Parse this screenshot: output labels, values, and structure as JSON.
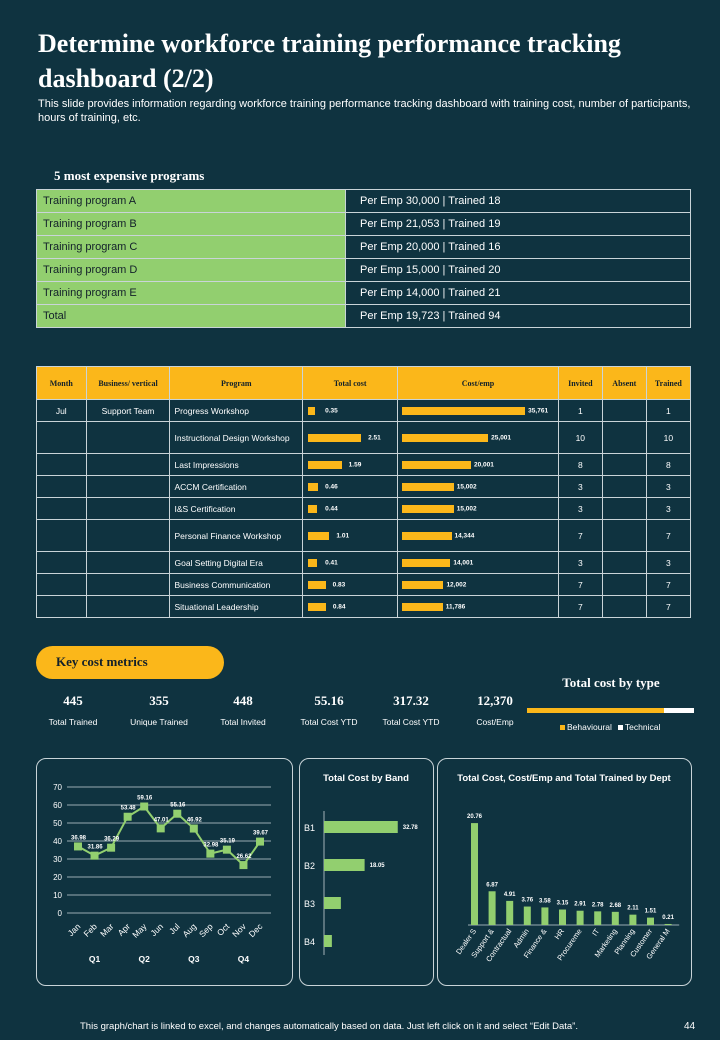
{
  "title": "Determine workforce  training performance tracking dashboard  (2/2)",
  "subtitle": "This slide provides information regarding workforce training performance tracking dashboard with training cost, number of participants, hours of training, etc.",
  "expensive_heading": "5 most expensive programs",
  "expensive_programs": [
    {
      "name": "Training  program A",
      "value": "Per Emp  30,000 | Trained 18"
    },
    {
      "name": "Training  program B",
      "value": "Per Emp  21,053 | Trained 19"
    },
    {
      "name": "Training  program C",
      "value": "Per Emp  20,000 | Trained 16"
    },
    {
      "name": "Training  program D",
      "value": "Per Emp  15,000 | Trained 20"
    },
    {
      "name": "Training  program E",
      "value": "Per Emp  14,000 | Trained 21"
    },
    {
      "name": "Total",
      "value": "Per Emp  19,723 | Trained 94"
    }
  ],
  "detail_table": {
    "headers": [
      "Month",
      "Business/ vertical",
      "Program",
      "Total cost",
      "Cost/emp",
      "Invited",
      "Absent",
      "Trained"
    ],
    "month": "Jul",
    "vertical": "Support Team",
    "total_cost_max": 2.51,
    "cost_emp_max": 35761,
    "rows": [
      {
        "program": "Progress Workshop",
        "total_cost": 0.35,
        "total_cost_label": "0.35",
        "cost_emp": 35761,
        "cost_emp_label": "35,761",
        "invited": "1",
        "absent": "",
        "trained": "1"
      },
      {
        "program": "Instructional Design Workshop",
        "total_cost": 2.51,
        "total_cost_label": "2.51",
        "cost_emp": 25001,
        "cost_emp_label": "25,001",
        "invited": "10",
        "absent": "",
        "trained": "10"
      },
      {
        "program": "Last Impressions",
        "total_cost": 1.59,
        "total_cost_label": "1.59",
        "cost_emp": 20001,
        "cost_emp_label": "20,001",
        "invited": "8",
        "absent": "",
        "trained": "8"
      },
      {
        "program": "ACCM Certification",
        "total_cost": 0.46,
        "total_cost_label": "0.46",
        "cost_emp": 15002,
        "cost_emp_label": "15,002",
        "invited": "3",
        "absent": "",
        "trained": "3"
      },
      {
        "program": "I&S Certification",
        "total_cost": 0.44,
        "total_cost_label": "0.44",
        "cost_emp": 15002,
        "cost_emp_label": "15,002",
        "invited": "3",
        "absent": "",
        "trained": "3"
      },
      {
        "program": "Personal Finance Workshop",
        "total_cost": 1.01,
        "total_cost_label": "1.01",
        "cost_emp": 14344,
        "cost_emp_label": "14,344",
        "invited": "7",
        "absent": "",
        "trained": "7"
      },
      {
        "program": "Goal Setting Digital Era",
        "total_cost": 0.41,
        "total_cost_label": "0.41",
        "cost_emp": 14001,
        "cost_emp_label": "14,001",
        "invited": "3",
        "absent": "",
        "trained": "3"
      },
      {
        "program": "Business Communication",
        "total_cost": 0.83,
        "total_cost_label": "0.83",
        "cost_emp": 12002,
        "cost_emp_label": "12,002",
        "invited": "7",
        "absent": "",
        "trained": "7"
      },
      {
        "program": "Situational Leadership",
        "total_cost": 0.84,
        "total_cost_label": "0.84",
        "cost_emp": 11786,
        "cost_emp_label": "11,786",
        "invited": "7",
        "absent": "",
        "trained": "7"
      }
    ]
  },
  "key_metrics_heading": "Key cost metrics",
  "metrics": [
    {
      "value": "445",
      "label": "Total Trained"
    },
    {
      "value": "355",
      "label": "Unique Trained"
    },
    {
      "value": "448",
      "label": "Total Invited"
    },
    {
      "value": "55.16",
      "label": "Total Cost YTD"
    },
    {
      "value": "317.32",
      "label": "Total Cost YTD"
    },
    {
      "value": "12,370",
      "label": "Cost/Emp"
    }
  ],
  "colors": {
    "background": "#0f3340",
    "accent": "#fbb71a",
    "green": "#92cf6f",
    "line": "#c9d4d8"
  },
  "footer": "This graph/chart is linked to excel, and changes automatically based on data. Just left click on it and select “Edit Data”.",
  "page_number": "44",
  "chart_data": [
    {
      "type": "bar",
      "title": "Total cost by type",
      "orientation": "horizontal-stacked",
      "categories": [
        "Total"
      ],
      "series": [
        {
          "name": "Behavioural",
          "values": [
            82
          ],
          "color": "#fbb71a"
        },
        {
          "name": "Technical",
          "values": [
            18
          ],
          "color": "#ffffff"
        }
      ],
      "legend": "bottom"
    },
    {
      "type": "line",
      "title": "",
      "x": [
        "Jan",
        "Feb",
        "Mar",
        "Apr",
        "May",
        "Jun",
        "Jul",
        "Aug",
        "Sep",
        "Oct",
        "Nov",
        "Dec"
      ],
      "values": [
        36.98,
        31.86,
        36.29,
        53.48,
        59.16,
        47.01,
        55.16,
        46.92,
        32.98,
        35.19,
        26.62,
        39.67
      ],
      "labels": [
        "36.98",
        "31.86",
        "36.29",
        "53.48",
        "59.16",
        "47.01",
        "55.16",
        "46.92",
        "32.98",
        "35.19",
        "26.62",
        "39.67"
      ],
      "quarters": [
        "Q1",
        "Q2",
        "Q3",
        "Q4"
      ],
      "ylim": [
        0,
        70
      ],
      "yticks": [
        "0",
        "10",
        "20",
        "30",
        "40",
        "50",
        "60",
        "70"
      ],
      "grid": true
    },
    {
      "type": "bar",
      "title": "Total Cost by Band",
      "orientation": "horizontal",
      "categories": [
        "B1",
        "B2",
        "B3",
        "B4"
      ],
      "values": [
        32.78,
        18.05,
        7.5,
        3.5
      ],
      "labels": [
        "32.78",
        "18.05",
        "",
        ""
      ],
      "xlim": [
        0,
        40
      ]
    },
    {
      "type": "bar",
      "title": "Total Cost, Cost/Emp and Total Trained by Dept",
      "categories": [
        "Dealer S",
        "Support &",
        "Contractual",
        "Admin",
        "Finance &",
        "HR",
        "Procureme",
        "IT",
        "Marketing",
        "Planning",
        "Customer",
        "General M"
      ],
      "values": [
        20.76,
        6.87,
        4.91,
        3.76,
        3.58,
        3.15,
        2.91,
        2.78,
        2.68,
        2.11,
        1.51,
        0.21
      ],
      "labels": [
        "20.76",
        "6.87",
        "4.91",
        "3.76",
        "3.58",
        "3.15",
        "2.91",
        "2.78",
        "2.68",
        "2.11",
        "1.51",
        "0.21"
      ],
      "ylim": [
        0,
        22
      ]
    }
  ]
}
